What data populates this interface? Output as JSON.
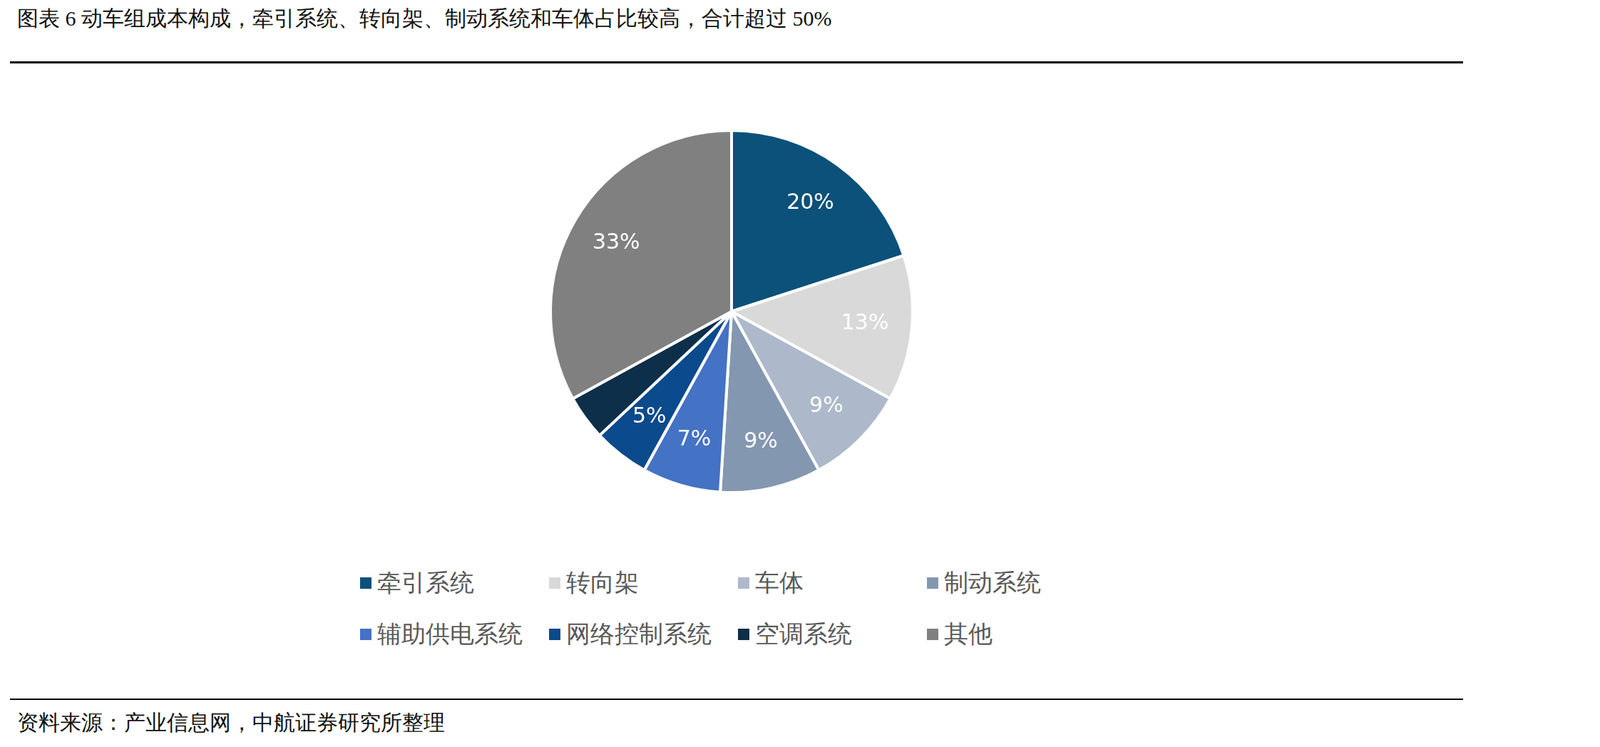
{
  "chart_data": {
    "type": "pie",
    "title": "图表 6 动车组成本构成，牵引系统、转向架、制动系统和车体占比较高，合计超过 50%",
    "categories": [
      "牵引系统",
      "转向架",
      "车体",
      "制动系统",
      "辅助供电系统",
      "网络控制系统",
      "空调系统",
      "其他"
    ],
    "values": [
      20,
      13,
      9,
      9,
      7,
      5,
      4,
      33
    ],
    "value_labels": [
      "20%",
      "13%",
      "9%",
      "9%",
      "7%",
      "5%",
      null,
      "33%"
    ],
    "colors": [
      "#0b5179",
      "#d9d9d9",
      "#adb9ca",
      "#8497b0",
      "#4472c4",
      "#0b4a8c",
      "#0d2f4a",
      "#808080"
    ],
    "data_labels": true,
    "legend": "bottom",
    "annotations": [
      "资料来源：产业信息网，中航证券研究所整理"
    ]
  }
}
